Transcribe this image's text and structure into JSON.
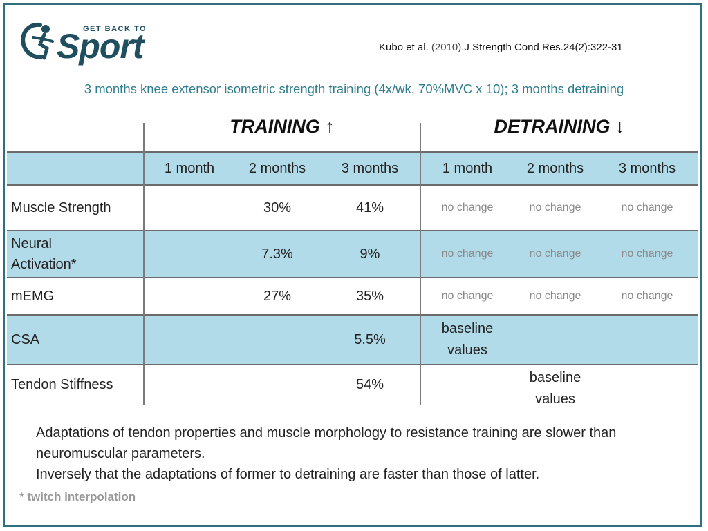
{
  "logo": {
    "small_text": "GET BACK TO",
    "word": "Sport"
  },
  "citation": {
    "authors": "Kubo et al. ",
    "year": "(2010)",
    "journal": ".J Strength Cond Res.",
    "ref": "24(2):322-31"
  },
  "subtitle": "3 months knee extensor isometric strength training (4x/wk, 70%MVC x 10); 3 months detraining",
  "table": {
    "training_header": "TRAINING ↑",
    "detraining_header": "DETRAINING ↓",
    "columns": [
      "1 month",
      "2 months",
      "3 months",
      "1 month",
      "2 months",
      "3 months"
    ],
    "rows": [
      {
        "label": "Muscle Strength",
        "values": [
          "",
          "30%",
          "41%",
          "no change",
          "no change",
          "no change"
        ]
      },
      {
        "label": "Neural Activation*",
        "values": [
          "",
          "7.3%",
          "9%",
          "no change",
          "no change",
          "no change"
        ]
      },
      {
        "label": "mEMG",
        "values": [
          "",
          "27%",
          "35%",
          "no change",
          "no change",
          "no change"
        ]
      },
      {
        "label": "CSA",
        "values": [
          "",
          "",
          "5.5%",
          "baseline values",
          "",
          ""
        ]
      },
      {
        "label": "Tendon Stiffness",
        "values": [
          "",
          "",
          "54%",
          "",
          "baseline values",
          ""
        ]
      }
    ]
  },
  "notes": [
    "Adaptations of tendon properties and muscle morphology to resistance training are slower than neuromuscular parameters.",
    "Inversely that the adaptations of former to detraining are faster than those of latter."
  ],
  "footnote": "* twitch interpolation",
  "colors": {
    "brand": "#1f4e5f",
    "accent": "#2e7d8c",
    "band": "#b2dbea",
    "frame": "#2f6f7e"
  }
}
